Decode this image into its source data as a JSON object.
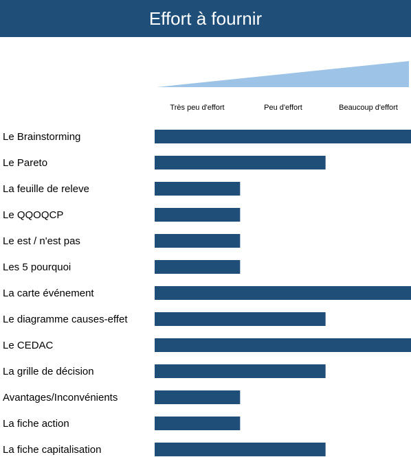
{
  "title": "Effort à fournir",
  "colors": {
    "header": "#1f4e79",
    "bar": "#1f4e79",
    "wedge": "#9dc3e6"
  },
  "chart_data": {
    "type": "bar",
    "orientation": "horizontal",
    "title": "Effort à fournir",
    "scale_labels": [
      "Très peu d'effort",
      "Peu d'effort",
      "Beaucoup d'effort"
    ],
    "categories": [
      "Le Brainstorming",
      "Le Pareto",
      "La feuille de releve",
      "Le QQOQCP",
      "Le est / n'est pas",
      "Les 5 pourquoi",
      "La carte événement",
      "Le diagramme causes-effet",
      "Le CEDAC",
      "La grille de décision",
      "Avantages/Inconvénients",
      "La fiche action",
      "La fiche capitalisation"
    ],
    "values": [
      3,
      2,
      1,
      1,
      1,
      1,
      3,
      2,
      3,
      2,
      1,
      1,
      2
    ],
    "xlim": [
      0,
      3
    ],
    "grid": false,
    "legend": "none"
  }
}
